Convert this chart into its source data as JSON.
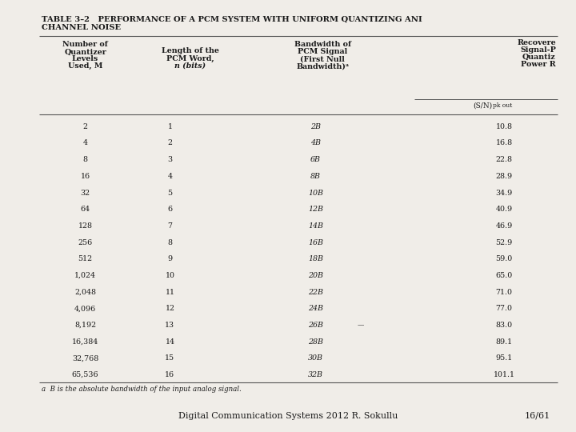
{
  "title_line1": "TABLE 3–2   PERFORMANCE OF A PCM SYSTEM WITH UNIFORM QUANTIZING ANI",
  "title_line2": "CHANNEL NOISE",
  "footer_text": "Digital Communication Systems 2012 R. Sokullu",
  "footer_right": "16/61",
  "footnote": "a  B is the absolute bandwidth of the input analog signal.",
  "rows": [
    [
      "2",
      "1",
      "2B",
      "10.8"
    ],
    [
      "4",
      "2",
      "4B",
      "16.8"
    ],
    [
      "8",
      "3",
      "6B",
      "22.8"
    ],
    [
      "16",
      "4",
      "8B",
      "28.9"
    ],
    [
      "32",
      "5",
      "10B",
      "34.9"
    ],
    [
      "64",
      "6",
      "12B",
      "40.9"
    ],
    [
      "128",
      "7",
      "14B",
      "46.9"
    ],
    [
      "256",
      "8",
      "16B",
      "52.9"
    ],
    [
      "512",
      "9",
      "18B",
      "59.0"
    ],
    [
      "1,024",
      "10",
      "20B",
      "65.0"
    ],
    [
      "2,048",
      "11",
      "22B",
      "71.0"
    ],
    [
      "4,096",
      "12",
      "24B",
      "77.0"
    ],
    [
      "8,192",
      "13",
      "26B",
      "83.0"
    ],
    [
      "16,384",
      "14",
      "28B",
      "89.1"
    ],
    [
      "32,768",
      "15",
      "30B",
      "95.1"
    ],
    [
      "65,536",
      "16",
      "32B",
      "101.1"
    ]
  ],
  "bg_color": "#f0ede8",
  "text_color": "#1a1a1a",
  "header1": [
    "Number of",
    "Quantizer",
    "Levels",
    "Used, M"
  ],
  "header2": [
    "Length of the",
    "PCM Word,",
    "n (bits)"
  ],
  "header3": [
    "Bandwidth of",
    "PCM Signal",
    "(First Null",
    "Bandwidth)"
  ],
  "header4_top": [
    "Recovere",
    "Signal-P",
    "Quantiz",
    "Power R"
  ],
  "header4_sub": "(S/N)",
  "header4_sub2": "pk out"
}
